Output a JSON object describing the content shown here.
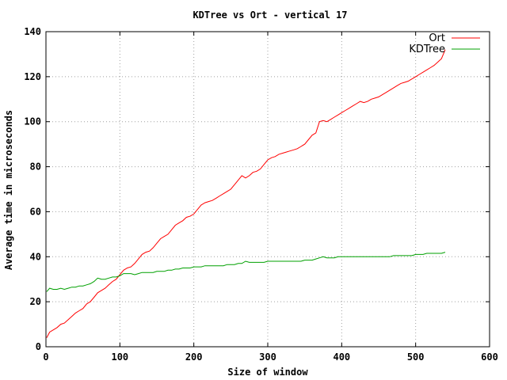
{
  "chart_data": {
    "type": "line",
    "title": "KDTree vs Ort - vertical 17",
    "xlabel": "Size of window",
    "ylabel": "Average time in microseconds",
    "xlim": [
      0,
      600
    ],
    "ylim": [
      0,
      140
    ],
    "xticks": [
      "0",
      "100",
      "200",
      "300",
      "400",
      "500",
      "600"
    ],
    "yticks": [
      "0",
      "20",
      "40",
      "60",
      "80",
      "100",
      "120",
      "140"
    ],
    "grid": true,
    "legend_position": "top-right",
    "series": [
      {
        "name": "Ort",
        "color": "#ff0000",
        "points": [
          [
            1,
            4
          ],
          [
            5,
            6.5
          ],
          [
            10,
            7.5
          ],
          [
            15,
            8.5
          ],
          [
            20,
            10
          ],
          [
            25,
            10.5
          ],
          [
            30,
            12
          ],
          [
            35,
            13.5
          ],
          [
            40,
            15
          ],
          [
            45,
            16
          ],
          [
            50,
            17
          ],
          [
            55,
            19
          ],
          [
            60,
            20
          ],
          [
            65,
            22
          ],
          [
            70,
            24
          ],
          [
            75,
            25
          ],
          [
            80,
            26
          ],
          [
            85,
            27.5
          ],
          [
            90,
            29
          ],
          [
            95,
            30
          ],
          [
            100,
            32
          ],
          [
            105,
            34
          ],
          [
            110,
            35
          ],
          [
            115,
            35.5
          ],
          [
            120,
            37
          ],
          [
            125,
            39
          ],
          [
            130,
            41
          ],
          [
            135,
            42
          ],
          [
            140,
            42.5
          ],
          [
            145,
            44
          ],
          [
            150,
            46
          ],
          [
            155,
            48
          ],
          [
            160,
            49
          ],
          [
            165,
            50
          ],
          [
            170,
            52
          ],
          [
            175,
            54
          ],
          [
            180,
            55
          ],
          [
            185,
            56
          ],
          [
            190,
            57.5
          ],
          [
            195,
            58
          ],
          [
            200,
            59
          ],
          [
            205,
            61
          ],
          [
            210,
            63
          ],
          [
            215,
            64
          ],
          [
            220,
            64.5
          ],
          [
            225,
            65
          ],
          [
            230,
            66
          ],
          [
            235,
            67
          ],
          [
            240,
            68
          ],
          [
            245,
            69
          ],
          [
            250,
            70
          ],
          [
            255,
            72
          ],
          [
            260,
            74
          ],
          [
            265,
            76
          ],
          [
            270,
            75
          ],
          [
            275,
            76
          ],
          [
            280,
            77.5
          ],
          [
            285,
            78
          ],
          [
            290,
            79
          ],
          [
            295,
            81
          ],
          [
            300,
            83
          ],
          [
            305,
            84
          ],
          [
            310,
            84.5
          ],
          [
            315,
            85.5
          ],
          [
            320,
            86
          ],
          [
            325,
            86.5
          ],
          [
            330,
            87
          ],
          [
            335,
            87.5
          ],
          [
            340,
            88
          ],
          [
            345,
            89
          ],
          [
            350,
            90
          ],
          [
            355,
            92
          ],
          [
            360,
            94
          ],
          [
            365,
            95
          ],
          [
            370,
            100
          ],
          [
            375,
            100.5
          ],
          [
            380,
            100
          ],
          [
            385,
            101
          ],
          [
            390,
            102
          ],
          [
            395,
            103
          ],
          [
            400,
            104
          ],
          [
            405,
            105
          ],
          [
            410,
            106
          ],
          [
            415,
            107
          ],
          [
            420,
            108
          ],
          [
            425,
            109
          ],
          [
            430,
            108.5
          ],
          [
            435,
            109
          ],
          [
            440,
            110
          ],
          [
            445,
            110.5
          ],
          [
            450,
            111
          ],
          [
            455,
            112
          ],
          [
            460,
            113
          ],
          [
            465,
            114
          ],
          [
            470,
            115
          ],
          [
            475,
            116
          ],
          [
            480,
            117
          ],
          [
            485,
            117.5
          ],
          [
            490,
            118
          ],
          [
            495,
            119
          ],
          [
            500,
            120
          ],
          [
            505,
            121
          ],
          [
            510,
            122
          ],
          [
            515,
            123
          ],
          [
            520,
            124
          ],
          [
            525,
            125
          ],
          [
            530,
            126.5
          ],
          [
            535,
            128
          ],
          [
            540,
            132
          ]
        ]
      },
      {
        "name": "KDTree",
        "color": "#00a000",
        "points": [
          [
            1,
            24.5
          ],
          [
            5,
            26
          ],
          [
            10,
            25.5
          ],
          [
            15,
            25.5
          ],
          [
            20,
            26
          ],
          [
            25,
            25.5
          ],
          [
            30,
            26
          ],
          [
            35,
            26.5
          ],
          [
            40,
            26.5
          ],
          [
            45,
            27
          ],
          [
            50,
            27
          ],
          [
            55,
            27.5
          ],
          [
            60,
            28
          ],
          [
            65,
            29
          ],
          [
            70,
            30.5
          ],
          [
            75,
            30
          ],
          [
            80,
            30
          ],
          [
            85,
            30.5
          ],
          [
            90,
            31
          ],
          [
            95,
            31
          ],
          [
            100,
            31.5
          ],
          [
            105,
            32.5
          ],
          [
            110,
            32.5
          ],
          [
            115,
            32.5
          ],
          [
            120,
            32
          ],
          [
            125,
            32.5
          ],
          [
            130,
            33
          ],
          [
            135,
            33
          ],
          [
            140,
            33
          ],
          [
            145,
            33
          ],
          [
            150,
            33.5
          ],
          [
            155,
            33.5
          ],
          [
            160,
            33.5
          ],
          [
            165,
            34
          ],
          [
            170,
            34
          ],
          [
            175,
            34.5
          ],
          [
            180,
            34.5
          ],
          [
            185,
            35
          ],
          [
            190,
            35
          ],
          [
            195,
            35
          ],
          [
            200,
            35.5
          ],
          [
            205,
            35.5
          ],
          [
            210,
            35.5
          ],
          [
            215,
            36
          ],
          [
            220,
            36
          ],
          [
            225,
            36
          ],
          [
            230,
            36
          ],
          [
            235,
            36
          ],
          [
            240,
            36
          ],
          [
            245,
            36.5
          ],
          [
            250,
            36.5
          ],
          [
            255,
            36.5
          ],
          [
            260,
            37
          ],
          [
            265,
            37
          ],
          [
            270,
            38
          ],
          [
            275,
            37.5
          ],
          [
            280,
            37.5
          ],
          [
            285,
            37.5
          ],
          [
            290,
            37.5
          ],
          [
            295,
            37.5
          ],
          [
            300,
            38
          ],
          [
            305,
            38
          ],
          [
            310,
            38
          ],
          [
            315,
            38
          ],
          [
            320,
            38
          ],
          [
            325,
            38
          ],
          [
            330,
            38
          ],
          [
            335,
            38
          ],
          [
            340,
            38
          ],
          [
            345,
            38
          ],
          [
            350,
            38.5
          ],
          [
            355,
            38.5
          ],
          [
            360,
            38.5
          ],
          [
            365,
            39
          ],
          [
            370,
            39.5
          ],
          [
            375,
            40
          ],
          [
            380,
            39.5
          ],
          [
            385,
            39.5
          ],
          [
            390,
            39.5
          ],
          [
            395,
            40
          ],
          [
            400,
            40
          ],
          [
            405,
            40
          ],
          [
            410,
            40
          ],
          [
            415,
            40
          ],
          [
            420,
            40
          ],
          [
            425,
            40
          ],
          [
            430,
            40
          ],
          [
            435,
            40
          ],
          [
            440,
            40
          ],
          [
            445,
            40
          ],
          [
            450,
            40
          ],
          [
            455,
            40
          ],
          [
            460,
            40
          ],
          [
            465,
            40
          ],
          [
            470,
            40.5
          ],
          [
            475,
            40.5
          ],
          [
            480,
            40.5
          ],
          [
            485,
            40.5
          ],
          [
            490,
            40.5
          ],
          [
            495,
            40.5
          ],
          [
            500,
            41
          ],
          [
            505,
            41
          ],
          [
            510,
            41
          ],
          [
            515,
            41.5
          ],
          [
            520,
            41.5
          ],
          [
            525,
            41.5
          ],
          [
            530,
            41.5
          ],
          [
            535,
            41.5
          ],
          [
            540,
            42
          ]
        ]
      }
    ]
  }
}
